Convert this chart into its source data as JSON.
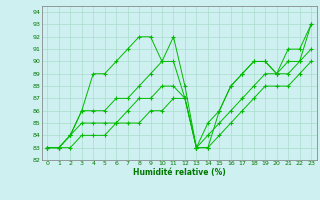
{
  "xlabel": "Humidité relative (%)",
  "bg_color": "#cff0f0",
  "grid_color": "#aaddcc",
  "line_color": "#00bb00",
  "xlim": [
    -0.5,
    23.5
  ],
  "ylim": [
    82,
    94.5
  ],
  "yticks": [
    82,
    83,
    84,
    85,
    86,
    87,
    88,
    89,
    90,
    91,
    92,
    93,
    94
  ],
  "xticks": [
    0,
    1,
    2,
    3,
    4,
    5,
    6,
    7,
    8,
    9,
    10,
    11,
    12,
    13,
    14,
    15,
    16,
    17,
    18,
    19,
    20,
    21,
    22,
    23
  ],
  "series": [
    [
      83,
      83,
      84,
      86,
      89,
      89,
      90,
      91,
      92,
      92,
      90,
      92,
      88,
      83,
      83,
      86,
      88,
      89,
      90,
      90,
      89,
      91,
      91,
      93
    ],
    [
      83,
      83,
      84,
      86,
      86,
      86,
      87,
      87,
      88,
      89,
      90,
      90,
      87,
      83,
      85,
      86,
      88,
      89,
      90,
      90,
      89,
      90,
      90,
      93
    ],
    [
      83,
      83,
      84,
      85,
      85,
      85,
      85,
      86,
      87,
      87,
      88,
      88,
      87,
      83,
      84,
      85,
      86,
      87,
      88,
      89,
      89,
      89,
      90,
      91
    ],
    [
      83,
      83,
      83,
      84,
      84,
      84,
      85,
      85,
      85,
      86,
      86,
      87,
      87,
      83,
      83,
      84,
      85,
      86,
      87,
      88,
      88,
      88,
      89,
      90
    ]
  ]
}
